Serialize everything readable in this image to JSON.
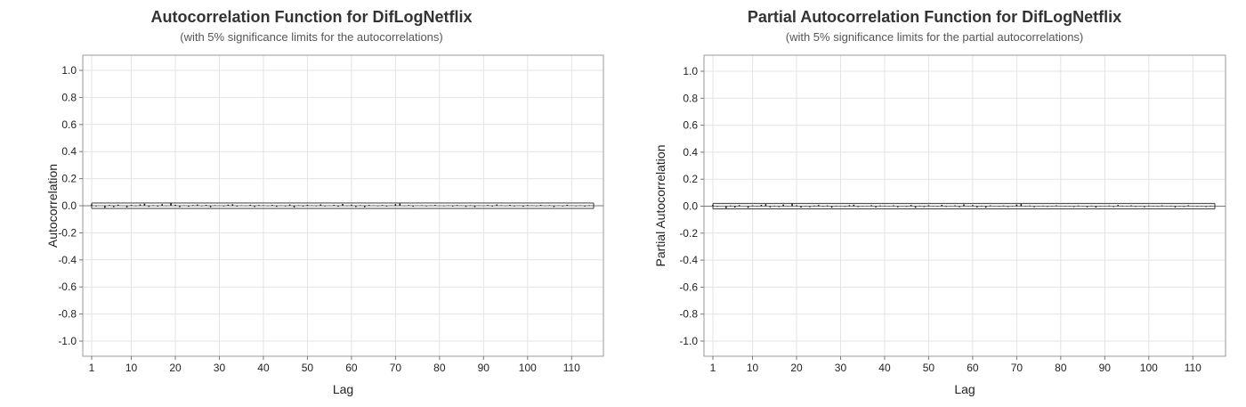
{
  "chart_data": [
    {
      "type": "bar",
      "title": "Autocorrelation Function for DifLogNetflix",
      "subtitle": "(with 5% significance limits for the autocorrelations)",
      "xlabel": "Lag",
      "ylabel": "Autocorrelation",
      "xlim": [
        1,
        115
      ],
      "ylim": [
        -1.0,
        1.0
      ],
      "xticks": [
        "1",
        "10",
        "20",
        "30",
        "40",
        "50",
        "60",
        "70",
        "80",
        "90",
        "100",
        "110"
      ],
      "yticks": [
        "1.0",
        "0.8",
        "0.6",
        "0.4",
        "0.2",
        "0.0",
        "-0.2",
        "-0.4",
        "-0.6",
        "-0.8",
        "-1.0"
      ],
      "grid": true,
      "significance_limit": 0.02,
      "series": [
        {
          "lags": [
            1,
            2,
            3,
            4,
            5,
            6,
            7,
            8,
            9,
            10,
            11,
            12,
            13,
            14,
            15,
            16,
            17,
            18,
            19,
            20,
            21,
            22,
            23,
            24,
            25,
            26,
            27,
            28,
            29,
            30,
            31,
            32,
            33,
            34,
            35,
            36,
            37,
            38,
            39,
            40,
            41,
            42,
            43,
            44,
            45,
            46,
            47,
            48,
            49,
            50,
            51,
            52,
            53,
            54,
            55,
            56,
            57,
            58,
            59,
            60,
            61,
            62,
            63,
            64,
            65,
            66,
            67,
            68,
            69,
            70,
            71,
            72,
            73,
            74,
            75,
            76,
            77,
            78,
            79,
            80,
            81,
            82,
            83,
            84,
            85,
            86,
            87,
            88,
            89,
            90,
            91,
            92,
            93,
            94,
            95,
            96,
            97,
            98,
            99,
            100,
            101,
            102,
            103,
            104,
            105,
            106,
            107,
            108,
            109,
            110,
            111,
            112,
            113,
            114,
            115
          ],
          "values": [
            0.01,
            -0.005,
            0.0,
            -0.015,
            0.005,
            -0.01,
            0.008,
            0.0,
            -0.012,
            0.006,
            -0.004,
            0.01,
            0.015,
            -0.008,
            0.004,
            -0.006,
            0.012,
            -0.003,
            0.02,
            0.007,
            -0.01,
            0.003,
            -0.007,
            0.005,
            0.009,
            -0.004,
            0.006,
            -0.011,
            0.004,
            0.002,
            -0.005,
            0.008,
            0.011,
            -0.006,
            0.003,
            -0.002,
            0.007,
            -0.009,
            0.005,
            0.004,
            -0.003,
            0.006,
            -0.008,
            0.002,
            -0.005,
            0.009,
            -0.012,
            0.004,
            -0.006,
            0.007,
            0.003,
            -0.004,
            0.01,
            -0.005,
            0.002,
            0.006,
            -0.007,
            0.013,
            -0.003,
            0.008,
            -0.009,
            0.004,
            -0.011,
            0.006,
            0.002,
            -0.004,
            0.005,
            -0.006,
            0.003,
            0.012,
            0.016,
            -0.003,
            0.005,
            -0.007,
            0.002,
            0.004,
            -0.005,
            0.003,
            0.006,
            -0.002,
            -0.004,
            0.003,
            -0.006,
            0.005,
            0.002,
            -0.008,
            0.004,
            -0.01,
            0.003,
            -0.002,
            0.005,
            -0.006,
            0.009,
            0.004,
            -0.003,
            0.006,
            -0.005,
            0.002,
            -0.007,
            0.005,
            0.003,
            -0.004,
            0.006,
            -0.002,
            0.004,
            -0.009,
            0.003,
            -0.005,
            0.007,
            0.002,
            -0.004,
            0.003,
            -0.006,
            0.004,
            0.002
          ]
        }
      ]
    },
    {
      "type": "bar",
      "title": "Partial Autocorrelation Function for DifLogNetflix",
      "subtitle": "(with 5% significance limits for the partial autocorrelations)",
      "xlabel": "Lag",
      "ylabel": "Partial Autocorrelation",
      "xlim": [
        1,
        115
      ],
      "ylim": [
        -1.0,
        1.0
      ],
      "xticks": [
        "1",
        "10",
        "20",
        "30",
        "40",
        "50",
        "60",
        "70",
        "80",
        "90",
        "100",
        "110"
      ],
      "yticks": [
        "1.0",
        "0.8",
        "0.6",
        "0.4",
        "0.2",
        "0.0",
        "-0.2",
        "-0.4",
        "-0.6",
        "-0.8",
        "-1.0"
      ],
      "grid": true,
      "significance_limit": 0.02,
      "series": [
        {
          "lags": [
            1,
            2,
            3,
            4,
            5,
            6,
            7,
            8,
            9,
            10,
            11,
            12,
            13,
            14,
            15,
            16,
            17,
            18,
            19,
            20,
            21,
            22,
            23,
            24,
            25,
            26,
            27,
            28,
            29,
            30,
            31,
            32,
            33,
            34,
            35,
            36,
            37,
            38,
            39,
            40,
            41,
            42,
            43,
            44,
            45,
            46,
            47,
            48,
            49,
            50,
            51,
            52,
            53,
            54,
            55,
            56,
            57,
            58,
            59,
            60,
            61,
            62,
            63,
            64,
            65,
            66,
            67,
            68,
            69,
            70,
            71,
            72,
            73,
            74,
            75,
            76,
            77,
            78,
            79,
            80,
            81,
            82,
            83,
            84,
            85,
            86,
            87,
            88,
            89,
            90,
            91,
            92,
            93,
            94,
            95,
            96,
            97,
            98,
            99,
            100,
            101,
            102,
            103,
            104,
            105,
            106,
            107,
            108,
            109,
            110,
            111,
            112,
            113,
            114,
            115
          ],
          "values": [
            0.01,
            -0.005,
            0.0,
            -0.015,
            0.005,
            -0.01,
            0.008,
            0.0,
            -0.012,
            0.006,
            -0.004,
            0.01,
            0.015,
            -0.008,
            0.004,
            -0.006,
            0.012,
            -0.003,
            0.02,
            0.007,
            -0.01,
            0.003,
            -0.007,
            0.005,
            0.009,
            -0.004,
            0.006,
            -0.011,
            0.004,
            0.002,
            -0.005,
            0.008,
            0.011,
            -0.006,
            0.003,
            -0.002,
            0.007,
            -0.009,
            0.005,
            0.004,
            -0.003,
            0.006,
            -0.008,
            0.002,
            -0.005,
            0.009,
            -0.012,
            0.004,
            -0.006,
            0.007,
            0.003,
            -0.004,
            0.01,
            -0.005,
            0.002,
            0.006,
            -0.007,
            0.013,
            -0.003,
            0.008,
            -0.009,
            0.004,
            -0.011,
            0.006,
            0.002,
            -0.004,
            0.005,
            -0.006,
            0.003,
            0.012,
            0.016,
            -0.003,
            0.005,
            -0.007,
            0.002,
            0.004,
            -0.005,
            0.003,
            0.006,
            -0.002,
            -0.004,
            0.003,
            -0.006,
            0.005,
            0.002,
            -0.008,
            0.004,
            -0.01,
            0.003,
            -0.002,
            0.005,
            -0.006,
            0.009,
            0.004,
            -0.003,
            0.006,
            -0.005,
            0.002,
            -0.007,
            0.005,
            0.003,
            -0.004,
            0.006,
            -0.002,
            0.004,
            -0.009,
            0.003,
            -0.005,
            0.007,
            0.002,
            -0.004,
            0.003,
            -0.006,
            0.004,
            0.002
          ]
        }
      ]
    }
  ]
}
